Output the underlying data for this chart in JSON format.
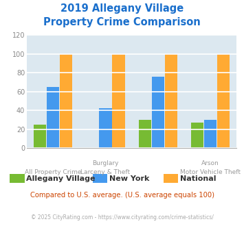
{
  "title_line1": "2019 Allegany Village",
  "title_line2": "Property Crime Comparison",
  "title_color": "#1a6fcc",
  "cat_labels_top": [
    "",
    "Burglary",
    "",
    "Arson"
  ],
  "cat_labels_bot": [
    "All Property Crime",
    "Larceny & Theft",
    "",
    "Motor Vehicle Theft"
  ],
  "series": {
    "Allegany Village": [
      25,
      0,
      30,
      27
    ],
    "New York": [
      65,
      42,
      76,
      30
    ],
    "National": [
      100,
      100,
      100,
      100
    ]
  },
  "series_colors": {
    "Allegany Village": "#77bb33",
    "New York": "#4499ee",
    "National": "#ffaa33"
  },
  "ylim": [
    0,
    120
  ],
  "yticks": [
    0,
    20,
    40,
    60,
    80,
    100,
    120
  ],
  "plot_bg_color": "#dce8f0",
  "outer_bg_color": "#ffffff",
  "grid_color": "#ffffff",
  "legend_note": "Compared to U.S. average. (U.S. average equals 100)",
  "legend_note_color": "#cc4400",
  "footer": "© 2025 CityRating.com - https://www.cityrating.com/crime-statistics/",
  "footer_color": "#aaaaaa",
  "bar_width": 0.25,
  "group_positions": [
    0,
    1,
    2,
    3
  ]
}
